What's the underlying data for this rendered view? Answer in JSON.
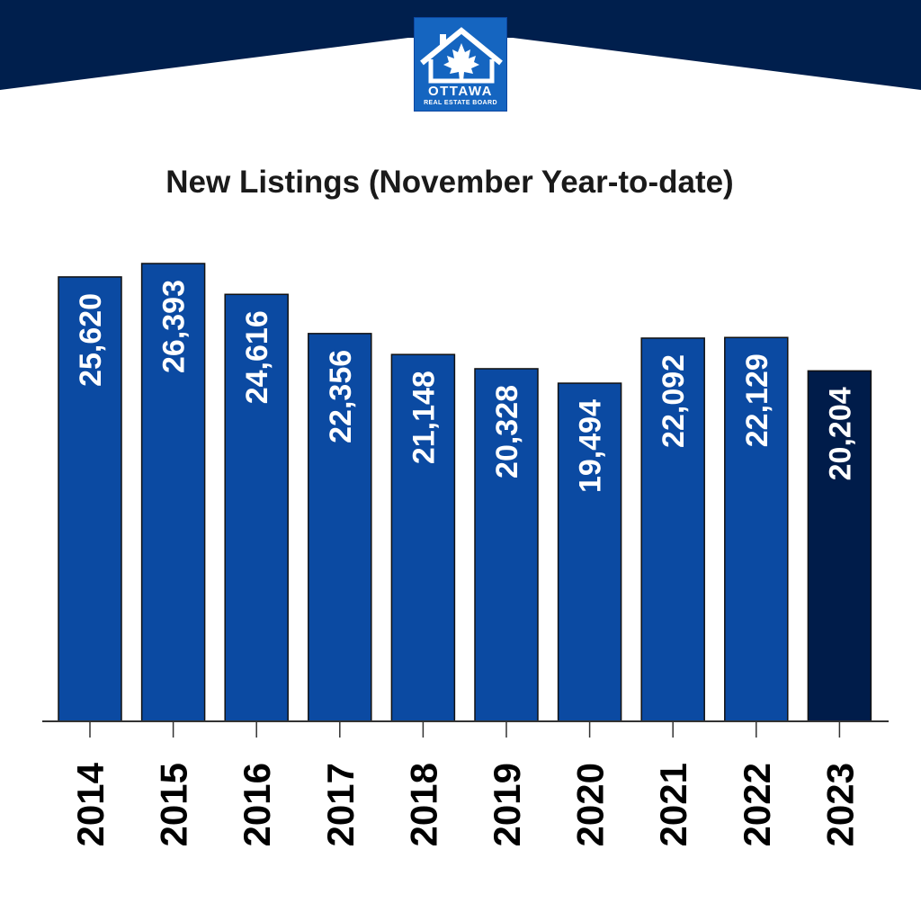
{
  "logo": {
    "name": "OTTAWA",
    "subtitle": "REAL ESTATE BOARD",
    "icon": "house-maple-leaf-icon"
  },
  "colors": {
    "banner": "#001f4d",
    "bar": "#0b4aa2",
    "bar_highlight": "#001c4a",
    "bar_label": "#ffffff",
    "axis": "#333333"
  },
  "chart_data": {
    "type": "bar",
    "title": "New Listings (November Year-to-date)",
    "xlabel": "",
    "ylabel": "",
    "categories": [
      "2014",
      "2015",
      "2016",
      "2017",
      "2018",
      "2019",
      "2020",
      "2021",
      "2022",
      "2023"
    ],
    "values": [
      25620,
      26393,
      24616,
      22356,
      21148,
      20328,
      19494,
      22092,
      22129,
      20204
    ],
    "value_labels": [
      "25,620",
      "26,393",
      "24,616",
      "22,356",
      "21,148",
      "20,328",
      "19,494",
      "22,092",
      "22,129",
      "20,204"
    ],
    "highlight_category": "2023",
    "grid": false,
    "legend": "none"
  }
}
